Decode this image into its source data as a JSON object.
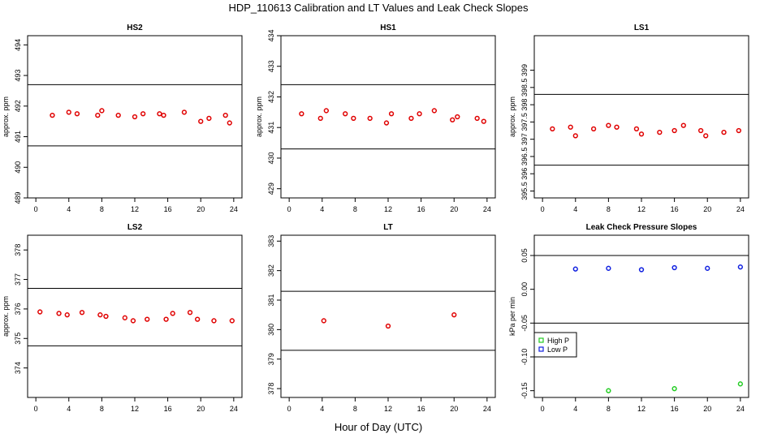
{
  "figure": {
    "title": "HDP_110613  Calibration and LT Values and Leak Check Slopes",
    "xlabel": "Hour of Day (UTC)"
  },
  "chart_data": [
    {
      "type": "scatter",
      "title": "HS2",
      "ylabel": "approx. ppm",
      "xlim": [
        -1,
        25
      ],
      "ylim": [
        489,
        494.3
      ],
      "xticks": [
        0,
        4,
        8,
        12,
        16,
        20,
        24
      ],
      "yticks": [
        489,
        490,
        491,
        492,
        493,
        494
      ],
      "hlines": [
        490.7,
        492.7
      ],
      "grid": false,
      "series": [
        {
          "color": "#e00000",
          "x": [
            2.0,
            4.0,
            5.0,
            7.5,
            8.0,
            10.0,
            12.0,
            13.0,
            15.0,
            15.5,
            18.0,
            20.0,
            21.0,
            23.0,
            23.5
          ],
          "y": [
            491.7,
            491.8,
            491.75,
            491.7,
            491.85,
            491.7,
            491.65,
            491.75,
            491.75,
            491.7,
            491.8,
            491.5,
            491.6,
            491.7,
            491.45
          ]
        }
      ]
    },
    {
      "type": "scatter",
      "title": "HS1",
      "ylabel": "approx. ppm",
      "xlim": [
        -1,
        25
      ],
      "ylim": [
        428.7,
        434
      ],
      "xticks": [
        0,
        4,
        8,
        12,
        16,
        20,
        24
      ],
      "yticks": [
        429,
        430,
        431,
        432,
        433,
        434
      ],
      "hlines": [
        430.3,
        432.4
      ],
      "grid": false,
      "series": [
        {
          "color": "#e00000",
          "x": [
            1.5,
            3.8,
            4.5,
            6.8,
            7.8,
            9.8,
            11.8,
            12.4,
            14.8,
            15.8,
            17.6,
            19.8,
            20.4,
            22.8,
            23.6
          ],
          "y": [
            431.45,
            431.3,
            431.55,
            431.45,
            431.3,
            431.3,
            431.15,
            431.45,
            431.3,
            431.45,
            431.55,
            431.25,
            431.35,
            431.3,
            431.2
          ]
        }
      ]
    },
    {
      "type": "scatter",
      "title": "LS1",
      "ylabel": "approx. ppm",
      "xlim": [
        -1,
        25
      ],
      "ylim": [
        395.3,
        400
      ],
      "xticks": [
        0,
        4,
        8,
        12,
        16,
        20,
        24
      ],
      "yticks": [
        395.5,
        396,
        396.5,
        397,
        397.5,
        398,
        398.5,
        399
      ],
      "hlines": [
        396.25,
        398.3
      ],
      "grid": false,
      "series": [
        {
          "color": "#e00000",
          "x": [
            1.2,
            3.4,
            4.0,
            6.2,
            8.0,
            9.0,
            11.4,
            12.0,
            14.2,
            16.0,
            17.1,
            19.2,
            19.8,
            22.0,
            23.8
          ],
          "y": [
            397.3,
            397.35,
            397.1,
            397.3,
            397.4,
            397.35,
            397.3,
            397.15,
            397.2,
            397.25,
            397.4,
            397.25,
            397.1,
            397.2,
            397.25
          ]
        }
      ]
    },
    {
      "type": "scatter",
      "title": "LS2",
      "ylabel": "approx. ppm",
      "xlim": [
        -1,
        25
      ],
      "ylim": [
        373,
        378.5
      ],
      "xticks": [
        0,
        4,
        8,
        12,
        16,
        20,
        24
      ],
      "yticks": [
        374,
        375,
        376,
        377,
        378
      ],
      "hlines": [
        374.75,
        376.7
      ],
      "grid": false,
      "series": [
        {
          "color": "#e00000",
          "x": [
            0.5,
            2.8,
            3.8,
            5.6,
            7.8,
            8.5,
            10.8,
            11.8,
            13.5,
            15.8,
            16.6,
            18.7,
            19.6,
            21.6,
            23.8
          ],
          "y": [
            375.9,
            375.85,
            375.8,
            375.88,
            375.8,
            375.75,
            375.7,
            375.6,
            375.65,
            375.65,
            375.85,
            375.88,
            375.65,
            375.6,
            375.6
          ]
        }
      ]
    },
    {
      "type": "scatter",
      "title": "LT",
      "ylabel": "",
      "xlim": [
        -1,
        25
      ],
      "ylim": [
        377.7,
        383.2
      ],
      "xticks": [
        0,
        4,
        8,
        12,
        16,
        20,
        24
      ],
      "yticks": [
        378,
        379,
        380,
        381,
        382,
        383
      ],
      "hlines": [
        379.3,
        381.3
      ],
      "grid": false,
      "series": [
        {
          "color": "#e00000",
          "x": [
            4.2,
            12.0,
            20.0
          ],
          "y": [
            380.3,
            380.12,
            380.5
          ]
        }
      ]
    },
    {
      "type": "scatter",
      "title": "Leak Check Pressure Slopes",
      "ylabel": "kPa per min",
      "xlim": [
        -1,
        25
      ],
      "ylim": [
        -0.16,
        0.08
      ],
      "xticks": [
        0,
        4,
        8,
        12,
        16,
        20,
        24
      ],
      "yticks": [
        -0.15,
        -0.1,
        -0.05,
        0.0,
        0.05
      ],
      "ytick_labels": [
        "-0.15",
        "-0.10",
        "-0.05",
        "0.00",
        "0.05"
      ],
      "hlines": [
        -0.05,
        0.05
      ],
      "grid": false,
      "legend_position": "bottom-left",
      "series": [
        {
          "name": "High P",
          "color": "#22cc22",
          "x": [
            8,
            16,
            24
          ],
          "y": [
            -0.15,
            -0.147,
            -0.14
          ]
        },
        {
          "name": "Low P",
          "color": "#1020e0",
          "x": [
            4,
            8,
            12,
            16,
            20,
            24
          ],
          "y": [
            0.03,
            0.031,
            0.029,
            0.032,
            0.031,
            0.033
          ]
        }
      ]
    }
  ]
}
